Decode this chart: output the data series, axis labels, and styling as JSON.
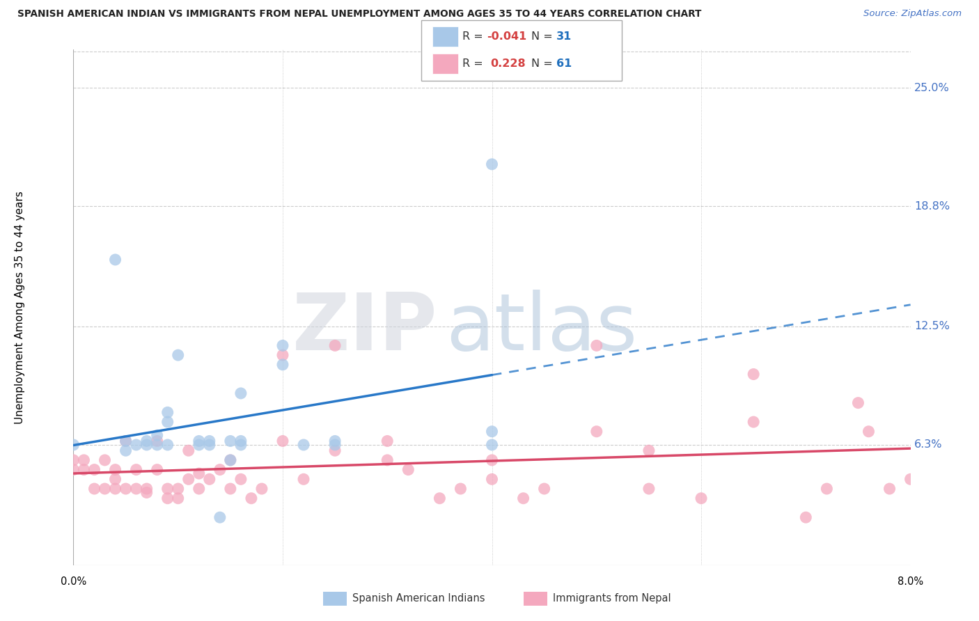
{
  "title": "SPANISH AMERICAN INDIAN VS IMMIGRANTS FROM NEPAL UNEMPLOYMENT AMONG AGES 35 TO 44 YEARS CORRELATION CHART",
  "source": "Source: ZipAtlas.com",
  "ylabel": "Unemployment Among Ages 35 to 44 years",
  "ytick_vals": [
    0.063,
    0.125,
    0.188,
    0.25
  ],
  "ytick_labels": [
    "6.3%",
    "12.5%",
    "18.8%",
    "25.0%"
  ],
  "xlim": [
    0.0,
    0.08
  ],
  "ylim": [
    0.0,
    0.27
  ],
  "blue_R": "-0.041",
  "blue_N": "31",
  "pink_R": "0.228",
  "pink_N": "61",
  "blue_color": "#a8c8e8",
  "pink_color": "#f4a8be",
  "blue_line_color": "#2878c8",
  "pink_line_color": "#d84868",
  "blue_scatter_x": [
    0.0,
    0.004,
    0.005,
    0.005,
    0.006,
    0.007,
    0.007,
    0.008,
    0.008,
    0.009,
    0.009,
    0.009,
    0.01,
    0.012,
    0.012,
    0.013,
    0.013,
    0.014,
    0.015,
    0.015,
    0.016,
    0.016,
    0.016,
    0.02,
    0.02,
    0.022,
    0.025,
    0.025,
    0.04,
    0.04,
    0.04
  ],
  "blue_scatter_y": [
    0.063,
    0.16,
    0.06,
    0.065,
    0.063,
    0.063,
    0.065,
    0.063,
    0.068,
    0.063,
    0.075,
    0.08,
    0.11,
    0.063,
    0.065,
    0.063,
    0.065,
    0.025,
    0.055,
    0.065,
    0.063,
    0.065,
    0.09,
    0.105,
    0.115,
    0.063,
    0.063,
    0.065,
    0.063,
    0.07,
    0.21
  ],
  "pink_scatter_x": [
    0.0,
    0.0,
    0.001,
    0.001,
    0.002,
    0.002,
    0.003,
    0.003,
    0.004,
    0.004,
    0.004,
    0.005,
    0.005,
    0.006,
    0.006,
    0.007,
    0.007,
    0.008,
    0.008,
    0.009,
    0.009,
    0.01,
    0.01,
    0.011,
    0.011,
    0.012,
    0.012,
    0.013,
    0.014,
    0.015,
    0.015,
    0.016,
    0.017,
    0.018,
    0.02,
    0.02,
    0.022,
    0.025,
    0.025,
    0.03,
    0.03,
    0.032,
    0.035,
    0.037,
    0.04,
    0.04,
    0.043,
    0.045,
    0.05,
    0.05,
    0.055,
    0.055,
    0.06,
    0.065,
    0.065,
    0.07,
    0.072,
    0.075,
    0.076,
    0.078,
    0.08
  ],
  "pink_scatter_y": [
    0.05,
    0.055,
    0.05,
    0.055,
    0.04,
    0.05,
    0.04,
    0.055,
    0.04,
    0.045,
    0.05,
    0.04,
    0.065,
    0.04,
    0.05,
    0.038,
    0.04,
    0.05,
    0.065,
    0.035,
    0.04,
    0.035,
    0.04,
    0.045,
    0.06,
    0.04,
    0.048,
    0.045,
    0.05,
    0.04,
    0.055,
    0.045,
    0.035,
    0.04,
    0.065,
    0.11,
    0.045,
    0.06,
    0.115,
    0.055,
    0.065,
    0.05,
    0.035,
    0.04,
    0.045,
    0.055,
    0.035,
    0.04,
    0.07,
    0.115,
    0.04,
    0.06,
    0.035,
    0.075,
    0.1,
    0.025,
    0.04,
    0.085,
    0.07,
    0.04,
    0.045
  ],
  "bottom_label1": "Spanish American Indians",
  "bottom_label2": "Immigrants from Nepal",
  "fig_width": 14.06,
  "fig_height": 8.92,
  "dpi": 100
}
